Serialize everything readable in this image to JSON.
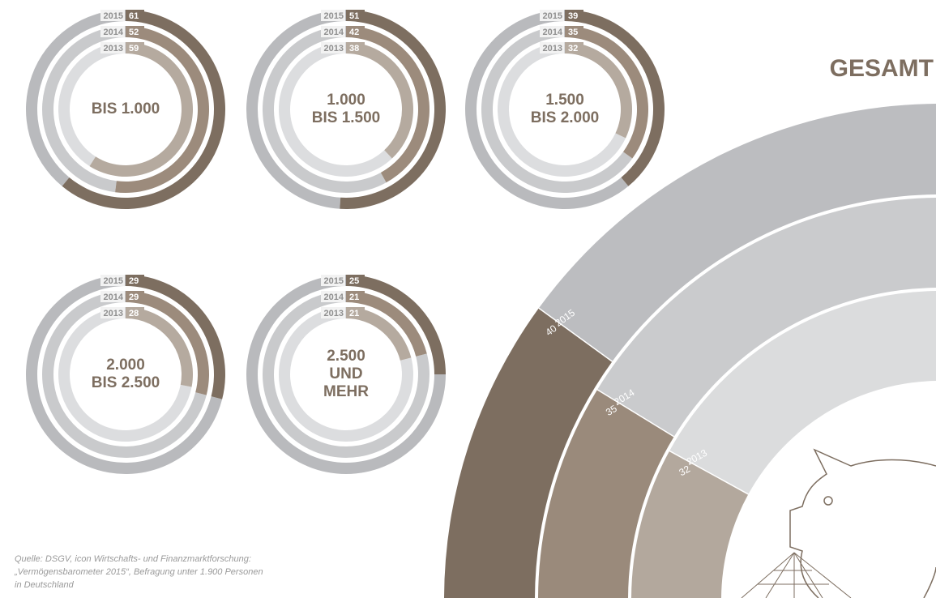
{
  "chart_data": [
    {
      "type": "ring",
      "title": [
        "BIS 1.000"
      ],
      "categories": [
        "2015",
        "2014",
        "2013"
      ],
      "values": [
        61,
        52,
        59
      ],
      "ylim": [
        0,
        100
      ],
      "colors": [
        "#7d6e60",
        "#9c8b7c",
        "#b5aa9f"
      ],
      "track_colors": [
        "#b9babd",
        "#c9cacc",
        "#dcdddf"
      ]
    },
    {
      "type": "ring",
      "title": [
        "1.000",
        "BIS 1.500"
      ],
      "categories": [
        "2015",
        "2014",
        "2013"
      ],
      "values": [
        51,
        42,
        38
      ],
      "ylim": [
        0,
        100
      ],
      "colors": [
        "#7d6e60",
        "#9c8b7c",
        "#b5aa9f"
      ],
      "track_colors": [
        "#b9babd",
        "#c9cacc",
        "#dcdddf"
      ]
    },
    {
      "type": "ring",
      "title": [
        "1.500",
        "BIS 2.000"
      ],
      "categories": [
        "2015",
        "2014",
        "2013"
      ],
      "values": [
        39,
        35,
        32
      ],
      "ylim": [
        0,
        100
      ],
      "colors": [
        "#7d6e60",
        "#9c8b7c",
        "#b5aa9f"
      ],
      "track_colors": [
        "#b9babd",
        "#c9cacc",
        "#dcdddf"
      ]
    },
    {
      "type": "ring",
      "title": [
        "2.000",
        "BIS 2.500"
      ],
      "categories": [
        "2015",
        "2014",
        "2013"
      ],
      "values": [
        29,
        29,
        28
      ],
      "ylim": [
        0,
        100
      ],
      "colors": [
        "#7d6e60",
        "#9c8b7c",
        "#b5aa9f"
      ],
      "track_colors": [
        "#b9babd",
        "#c9cacc",
        "#dcdddf"
      ]
    },
    {
      "type": "ring",
      "title": [
        "2.500",
        "UND",
        "MEHR"
      ],
      "categories": [
        "2015",
        "2014",
        "2013"
      ],
      "values": [
        25,
        21,
        21
      ],
      "ylim": [
        0,
        100
      ],
      "colors": [
        "#7d6e60",
        "#9c8b7c",
        "#b5aa9f"
      ],
      "track_colors": [
        "#b9babd",
        "#c9cacc",
        "#dcdddf"
      ]
    },
    {
      "type": "quarter-ring",
      "title": [
        "GESAMT"
      ],
      "categories": [
        "2015",
        "2014",
        "2013"
      ],
      "values": [
        40,
        35,
        32
      ],
      "ylim": [
        0,
        100
      ],
      "colors": [
        "#7d6e60",
        "#9a8a7b",
        "#b3a89d"
      ],
      "track_colors": [
        "#bcbdc0",
        "#cacbcd",
        "#dbdcdd"
      ]
    }
  ],
  "source": [
    "Quelle: DSGV, icon Wirtschafts- und Finanzmarktforschung:",
    "„Vermögensbarometer 2015“, Befragung unter 1.900 Personen",
    "in Deutschland"
  ]
}
